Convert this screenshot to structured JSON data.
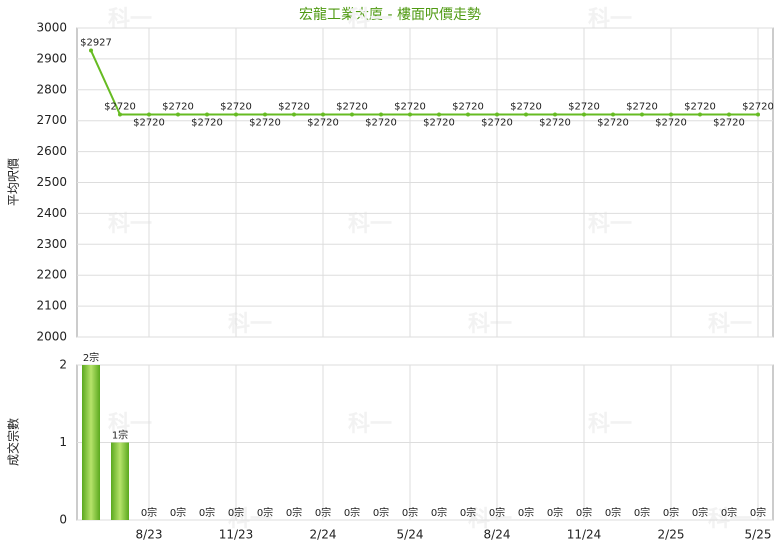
{
  "watermark": "科一",
  "chart_data": [
    {
      "type": "line",
      "title": "宏龍工業大廈 - 樓面呎價走勢",
      "ylabel": "平均呎價",
      "series": [
        {
          "color": "#66bb22",
          "values": [
            2927,
            2720,
            2720,
            2720,
            2720,
            2720,
            2720,
            2720,
            2720,
            2720,
            2720,
            2720,
            2720,
            2720,
            2720,
            2720,
            2720,
            2720,
            2720,
            2720,
            2720,
            2720,
            2720,
            2720
          ],
          "value_labels": [
            "$2927",
            "$2720",
            "$2720",
            "$2720",
            "$2720",
            "$2720",
            "$2720",
            "$2720",
            "$2720",
            "$2720",
            "$2720",
            "$2720",
            "$2720",
            "$2720",
            "$2720",
            "$2720",
            "$2720",
            "$2720",
            "$2720",
            "$2720",
            "$2720",
            "$2720",
            "$2720",
            "$2720"
          ]
        }
      ],
      "ylim": [
        2000,
        3000
      ],
      "yticks": [
        2000,
        2100,
        2200,
        2300,
        2400,
        2500,
        2600,
        2700,
        2800,
        2900,
        3000
      ],
      "grid": true
    },
    {
      "type": "bar",
      "ylabel": "成交宗數",
      "color": "#7cc43a",
      "categories": [
        null,
        null,
        "8/23",
        null,
        null,
        "11/23",
        null,
        null,
        "2/24",
        null,
        null,
        "5/24",
        null,
        null,
        "8/24",
        null,
        null,
        "11/24",
        null,
        null,
        "2/25",
        null,
        null,
        "5/25"
      ],
      "values": [
        2,
        1,
        0,
        0,
        0,
        0,
        0,
        0,
        0,
        0,
        0,
        0,
        0,
        0,
        0,
        0,
        0,
        0,
        0,
        0,
        0,
        0,
        0,
        0
      ],
      "value_labels": [
        "2宗",
        "1宗",
        "0宗",
        "0宗",
        "0宗",
        "0宗",
        "0宗",
        "0宗",
        "0宗",
        "0宗",
        "0宗",
        "0宗",
        "0宗",
        "0宗",
        "0宗",
        "0宗",
        "0宗",
        "0宗",
        "0宗",
        "0宗",
        "0宗",
        "0宗",
        "0宗",
        "0宗"
      ],
      "ylim": [
        0,
        2
      ],
      "yticks": [
        0,
        1,
        2
      ],
      "grid": true
    }
  ]
}
